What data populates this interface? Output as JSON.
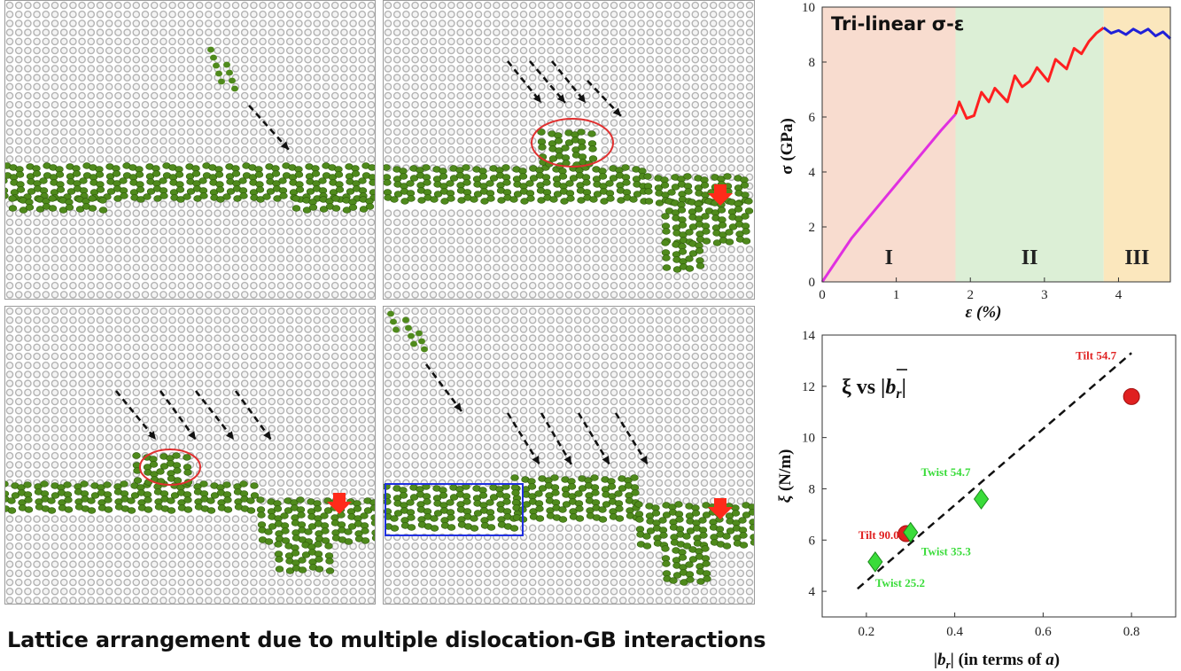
{
  "caption": "Lattice arrangement due to multiple dislocation-GB interactions",
  "colors": {
    "atom_grey": "#b4b4b4",
    "atom_green": "#4f8a1c",
    "arrow": "#111111",
    "circle": "#e03030",
    "red_arrow": "#ff2a1a",
    "box": "#2030e0",
    "region1": "#f8dccf",
    "region2": "#dcefd6",
    "region3": "#fbe7bd",
    "curve1": "#e030e0",
    "curve2": "#ff2020",
    "curve3": "#2020d8",
    "tilt": "#e02020",
    "twist": "#3adc3a"
  },
  "panels": [
    {
      "name": "lattice-panel-1"
    },
    {
      "name": "lattice-panel-2"
    },
    {
      "name": "lattice-panel-3"
    },
    {
      "name": "lattice-panel-4"
    }
  ],
  "chart_data": [
    {
      "type": "line",
      "title": "Tri-linear σ-ε",
      "xlabel": "ε (%)",
      "ylabel": "σ (GPa)",
      "xlim": [
        0,
        4.7
      ],
      "ylim": [
        0,
        10
      ],
      "xticks": [
        "0",
        "1",
        "2",
        "3",
        "4"
      ],
      "yticks": [
        "0",
        "2",
        "4",
        "6",
        "8",
        "10"
      ],
      "grid": false,
      "regions": [
        {
          "label": "I",
          "x0": 0,
          "x1": 1.8
        },
        {
          "label": "II",
          "x0": 1.8,
          "x1": 3.8
        },
        {
          "label": "III",
          "x0": 3.8,
          "x1": 4.7
        }
      ],
      "series": [
        {
          "x": [
            0,
            0.05,
            0.15,
            0.4,
            0.8,
            1.2,
            1.6,
            1.8
          ],
          "y": [
            0,
            0.2,
            0.6,
            1.6,
            2.9,
            4.2,
            5.5,
            6.1
          ]
        },
        {
          "x": [
            1.8,
            1.85,
            1.95,
            2.05,
            2.15,
            2.25,
            2.33,
            2.5,
            2.6,
            2.7,
            2.8,
            2.9,
            3.05,
            3.15,
            3.3,
            3.4,
            3.5,
            3.6,
            3.7,
            3.8
          ],
          "y": [
            6.1,
            6.55,
            5.95,
            6.05,
            6.9,
            6.55,
            7.05,
            6.55,
            7.5,
            7.1,
            7.3,
            7.8,
            7.3,
            8.1,
            7.75,
            8.5,
            8.3,
            8.75,
            9.05,
            9.25
          ]
        },
        {
          "x": [
            3.8,
            3.9,
            4.0,
            4.1,
            4.2,
            4.3,
            4.4,
            4.5,
            4.6,
            4.7
          ],
          "y": [
            9.25,
            9.05,
            9.15,
            9.0,
            9.2,
            9.05,
            9.2,
            8.95,
            9.1,
            8.85
          ]
        }
      ]
    },
    {
      "type": "scatter",
      "title": "ξ vs |b_r|",
      "xlabel": "|b_r| (in terms of a)",
      "ylabel": "ξ (N/m)",
      "xlim": [
        0.1,
        0.9
      ],
      "ylim": [
        3,
        14
      ],
      "xticks": [
        "0.2",
        "0.4",
        "0.6",
        "0.8"
      ],
      "yticks": [
        "4",
        "6",
        "8",
        "10",
        "12",
        "14"
      ],
      "grid": false,
      "fit_line": {
        "x": [
          0.18,
          0.8
        ],
        "y": [
          4.1,
          13.3
        ]
      },
      "points": [
        {
          "label": "Tilt 54.7",
          "group": "tilt",
          "x": 0.8,
          "y": 11.6
        },
        {
          "label": "Tilt 90.0",
          "group": "tilt",
          "x": 0.29,
          "y": 6.25
        },
        {
          "label": "Twist 54.7",
          "group": "twist",
          "x": 0.46,
          "y": 7.6
        },
        {
          "label": "Twist 35.3",
          "group": "twist",
          "x": 0.3,
          "y": 6.3
        },
        {
          "label": "Twist 25.2",
          "group": "twist",
          "x": 0.22,
          "y": 5.15
        }
      ]
    }
  ]
}
